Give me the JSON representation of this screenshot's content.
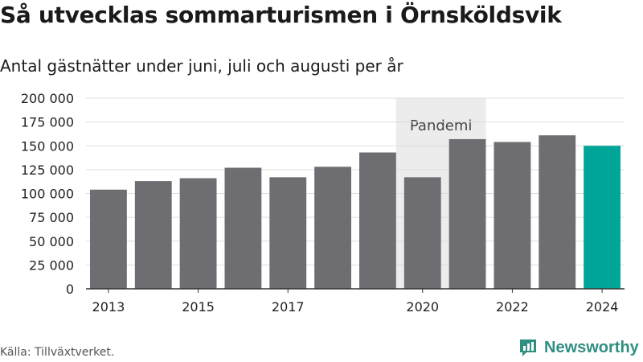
{
  "header": {
    "title": "Så utvecklas sommarturismen i Örnsköldsvik",
    "subtitle": "Antal gästnätter under juni, juli och augusti per år"
  },
  "footer": {
    "source": "Källa: Tillväxtverket.",
    "logo_text": "Newsworthy",
    "logo_icon": "bar-chart-speech-bubble-icon"
  },
  "chart_data": {
    "type": "bar",
    "categories": [
      "2013",
      "2014",
      "2015",
      "2016",
      "2017",
      "2018",
      "2019",
      "2020",
      "2021",
      "2022",
      "2023",
      "2024"
    ],
    "values": [
      104000,
      113000,
      116000,
      127000,
      117000,
      128000,
      143000,
      117000,
      157000,
      154000,
      161000,
      150000
    ],
    "ylim": [
      0,
      200000
    ],
    "yticks": [
      0,
      25000,
      50000,
      75000,
      100000,
      125000,
      150000,
      175000,
      200000
    ],
    "ytick_labels": [
      "0",
      "25 000",
      "50 000",
      "75 000",
      "100 000",
      "125 000",
      "150 000",
      "175 000",
      "200 000"
    ],
    "xtick_labels": [
      "2013",
      "2015",
      "2017",
      "2020",
      "2022",
      "2024"
    ],
    "grid": "horizontal",
    "colors": {
      "bar": "#6e6d72",
      "highlight": "#00a59a",
      "band": "#ececec",
      "grid": "#dddddd"
    },
    "highlight_category": "2024",
    "annotations": [
      {
        "label": "Pandemi",
        "from": "2020",
        "to": "2021"
      }
    ]
  }
}
